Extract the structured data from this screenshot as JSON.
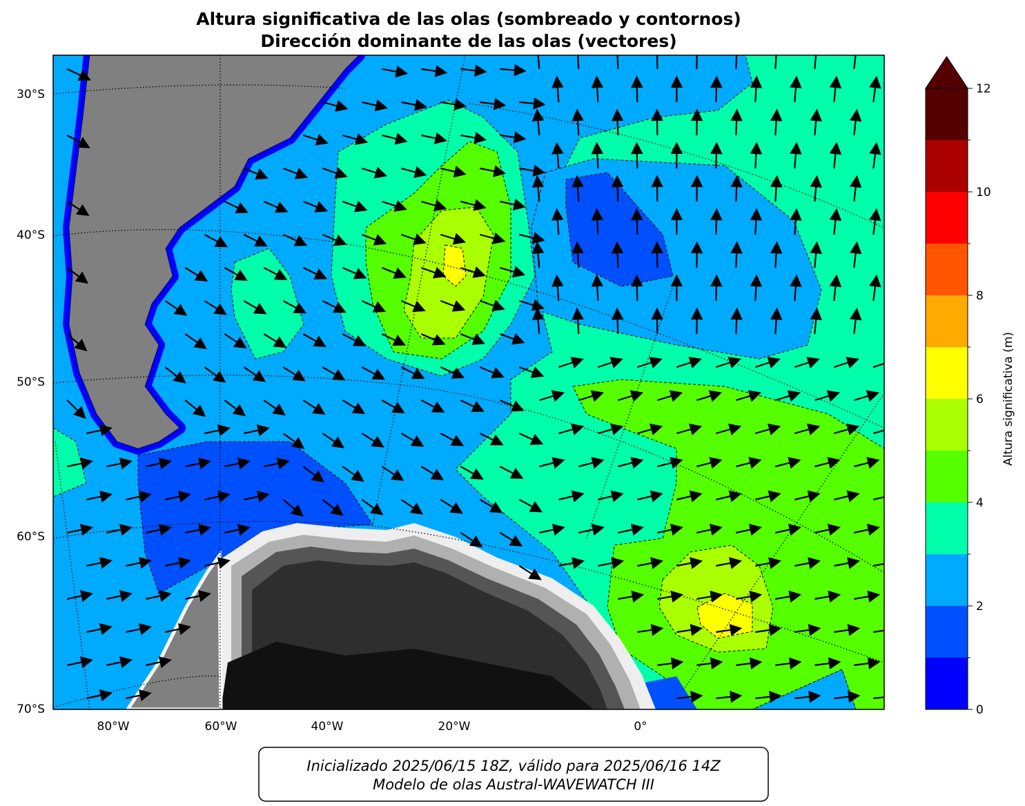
{
  "title": [
    "Altura significativa de las olas (sombreado y contornos)",
    "Dirección dominante de las olas (vectores)"
  ],
  "map": {
    "lat_labels": [
      "30°S",
      "40°S",
      "50°S",
      "60°S",
      "70°S"
    ],
    "lon_labels": [
      "80°W",
      "60°W",
      "40°W",
      "20°W",
      "0°"
    ]
  },
  "colorbar": {
    "label": "Altura significativa (m)",
    "levels": [
      0,
      1,
      2,
      3,
      4,
      5,
      6,
      7,
      8,
      9,
      10,
      11,
      12
    ],
    "ticks": [
      0,
      2,
      4,
      6,
      8,
      10,
      12
    ],
    "colors": [
      "#0000ff",
      "#0050ff",
      "#00aaff",
      "#00ffaa",
      "#55ff00",
      "#aaff00",
      "#ffff00",
      "#ffaa00",
      "#ff5500",
      "#ff0000",
      "#aa0000",
      "#550000"
    ],
    "extend_color": "#550000"
  },
  "footer": [
    "Inicializado 2025/06/15 18Z, válido para 2025/06/16 14Z",
    "Modelo de olas Austral-WAVEWATCH III"
  ]
}
